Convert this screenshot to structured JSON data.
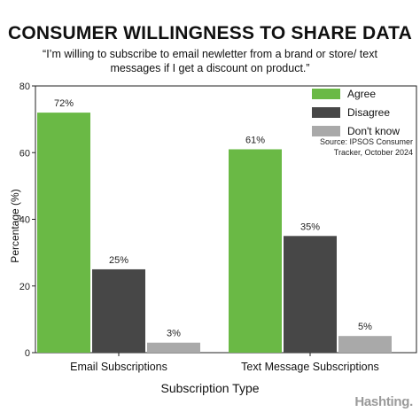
{
  "title": "CONSUMER WILLINGNESS TO SHARE DATA",
  "subtitle": "“I’m willing to subscribe to email newletter from a brand or store/ text messages if I get a discount on product.”",
  "source": "Source: IPSOS Consumer Tracker, October 2024",
  "brand": "Hashting.",
  "chart_data": {
    "type": "bar",
    "title": "CONSUMER WILLINGNESS TO SHARE DATA",
    "xlabel": "Subscription Type",
    "ylabel": "Percentage (%)",
    "ylim": [
      0,
      80
    ],
    "yticks": [
      0,
      20,
      40,
      60,
      80
    ],
    "categories": [
      "Email Subscriptions",
      "Text Message Subscriptions"
    ],
    "series": [
      {
        "name": "Agree",
        "values": [
          72,
          61
        ],
        "labels": [
          "72%",
          "61%"
        ],
        "color": "#6ab945"
      },
      {
        "name": "Disagree",
        "values": [
          25,
          35
        ],
        "labels": [
          "25%",
          "35%"
        ],
        "color": "#474747"
      },
      {
        "name": "Don't know",
        "values": [
          3,
          5
        ],
        "labels": [
          "3%",
          "5%"
        ],
        "color": "#a9a9a9"
      }
    ],
    "legend_position": "top-right",
    "grid": false
  }
}
